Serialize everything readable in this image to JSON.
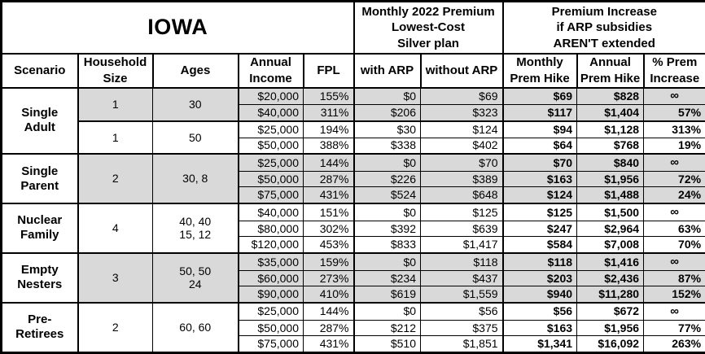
{
  "title": "IOWA",
  "colors": {
    "shaded_row": "#D9D9D9",
    "border": "#000000",
    "background": "#FFFFFF",
    "text": "#000000"
  },
  "header": {
    "premium_group": "Monthly 2022 Premium\nLowest-Cost\nSilver plan",
    "increase_group": "Premium Increase\nif ARP subsidies\nAREN'T extended"
  },
  "columns": [
    "Scenario",
    "Household\nSize",
    "Ages",
    "Annual\nIncome",
    "FPL",
    "with ARP",
    "without ARP",
    "Monthly\nPrem Hike",
    "Annual\nPrem Hike",
    "% Prem\nIncrease"
  ],
  "groups": [
    {
      "scenario": "Single\nAdult",
      "subgroups": [
        {
          "household_size": "1",
          "ages": "30",
          "shaded": true,
          "rows": [
            {
              "income": "$20,000",
              "fpl": "155%",
              "with_arp": "$0",
              "without_arp": "$69",
              "monthly_hike": "$69",
              "annual_hike": "$828",
              "pct_increase": "∞"
            },
            {
              "income": "$40,000",
              "fpl": "311%",
              "with_arp": "$206",
              "without_arp": "$323",
              "monthly_hike": "$117",
              "annual_hike": "$1,404",
              "pct_increase": "57%"
            }
          ]
        },
        {
          "household_size": "1",
          "ages": "50",
          "shaded": false,
          "rows": [
            {
              "income": "$25,000",
              "fpl": "194%",
              "with_arp": "$30",
              "without_arp": "$124",
              "monthly_hike": "$94",
              "annual_hike": "$1,128",
              "pct_increase": "313%"
            },
            {
              "income": "$50,000",
              "fpl": "388%",
              "with_arp": "$338",
              "without_arp": "$402",
              "monthly_hike": "$64",
              "annual_hike": "$768",
              "pct_increase": "19%"
            }
          ]
        }
      ]
    },
    {
      "scenario": "Single\nParent",
      "subgroups": [
        {
          "household_size": "2",
          "ages": "30, 8",
          "shaded": true,
          "rows": [
            {
              "income": "$25,000",
              "fpl": "144%",
              "with_arp": "$0",
              "without_arp": "$70",
              "monthly_hike": "$70",
              "annual_hike": "$840",
              "pct_increase": "∞"
            },
            {
              "income": "$50,000",
              "fpl": "287%",
              "with_arp": "$226",
              "without_arp": "$389",
              "monthly_hike": "$163",
              "annual_hike": "$1,956",
              "pct_increase": "72%"
            },
            {
              "income": "$75,000",
              "fpl": "431%",
              "with_arp": "$524",
              "without_arp": "$648",
              "monthly_hike": "$124",
              "annual_hike": "$1,488",
              "pct_increase": "24%"
            }
          ]
        }
      ]
    },
    {
      "scenario": "Nuclear\nFamily",
      "subgroups": [
        {
          "household_size": "4",
          "ages": "40, 40\n15, 12",
          "shaded": false,
          "rows": [
            {
              "income": "$40,000",
              "fpl": "151%",
              "with_arp": "$0",
              "without_arp": "$125",
              "monthly_hike": "$125",
              "annual_hike": "$1,500",
              "pct_increase": "∞"
            },
            {
              "income": "$80,000",
              "fpl": "302%",
              "with_arp": "$392",
              "without_arp": "$639",
              "monthly_hike": "$247",
              "annual_hike": "$2,964",
              "pct_increase": "63%"
            },
            {
              "income": "$120,000",
              "fpl": "453%",
              "with_arp": "$833",
              "without_arp": "$1,417",
              "monthly_hike": "$584",
              "annual_hike": "$7,008",
              "pct_increase": "70%"
            }
          ]
        }
      ]
    },
    {
      "scenario": "Empty\nNesters",
      "subgroups": [
        {
          "household_size": "3",
          "ages": "50, 50\n24",
          "shaded": true,
          "rows": [
            {
              "income": "$35,000",
              "fpl": "159%",
              "with_arp": "$0",
              "without_arp": "$118",
              "monthly_hike": "$118",
              "annual_hike": "$1,416",
              "pct_increase": "∞"
            },
            {
              "income": "$60,000",
              "fpl": "273%",
              "with_arp": "$234",
              "without_arp": "$437",
              "monthly_hike": "$203",
              "annual_hike": "$2,436",
              "pct_increase": "87%"
            },
            {
              "income": "$90,000",
              "fpl": "410%",
              "with_arp": "$619",
              "without_arp": "$1,559",
              "monthly_hike": "$940",
              "annual_hike": "$11,280",
              "pct_increase": "152%"
            }
          ]
        }
      ]
    },
    {
      "scenario": "Pre-\nRetirees",
      "subgroups": [
        {
          "household_size": "2",
          "ages": "60, 60",
          "shaded": false,
          "rows": [
            {
              "income": "$25,000",
              "fpl": "144%",
              "with_arp": "$0",
              "without_arp": "$56",
              "monthly_hike": "$56",
              "annual_hike": "$672",
              "pct_increase": "∞"
            },
            {
              "income": "$50,000",
              "fpl": "287%",
              "with_arp": "$212",
              "without_arp": "$375",
              "monthly_hike": "$163",
              "annual_hike": "$1,956",
              "pct_increase": "77%"
            },
            {
              "income": "$75,000",
              "fpl": "431%",
              "with_arp": "$510",
              "without_arp": "$1,851",
              "monthly_hike": "$1,341",
              "annual_hike": "$16,092",
              "pct_increase": "263%"
            }
          ]
        }
      ]
    }
  ]
}
